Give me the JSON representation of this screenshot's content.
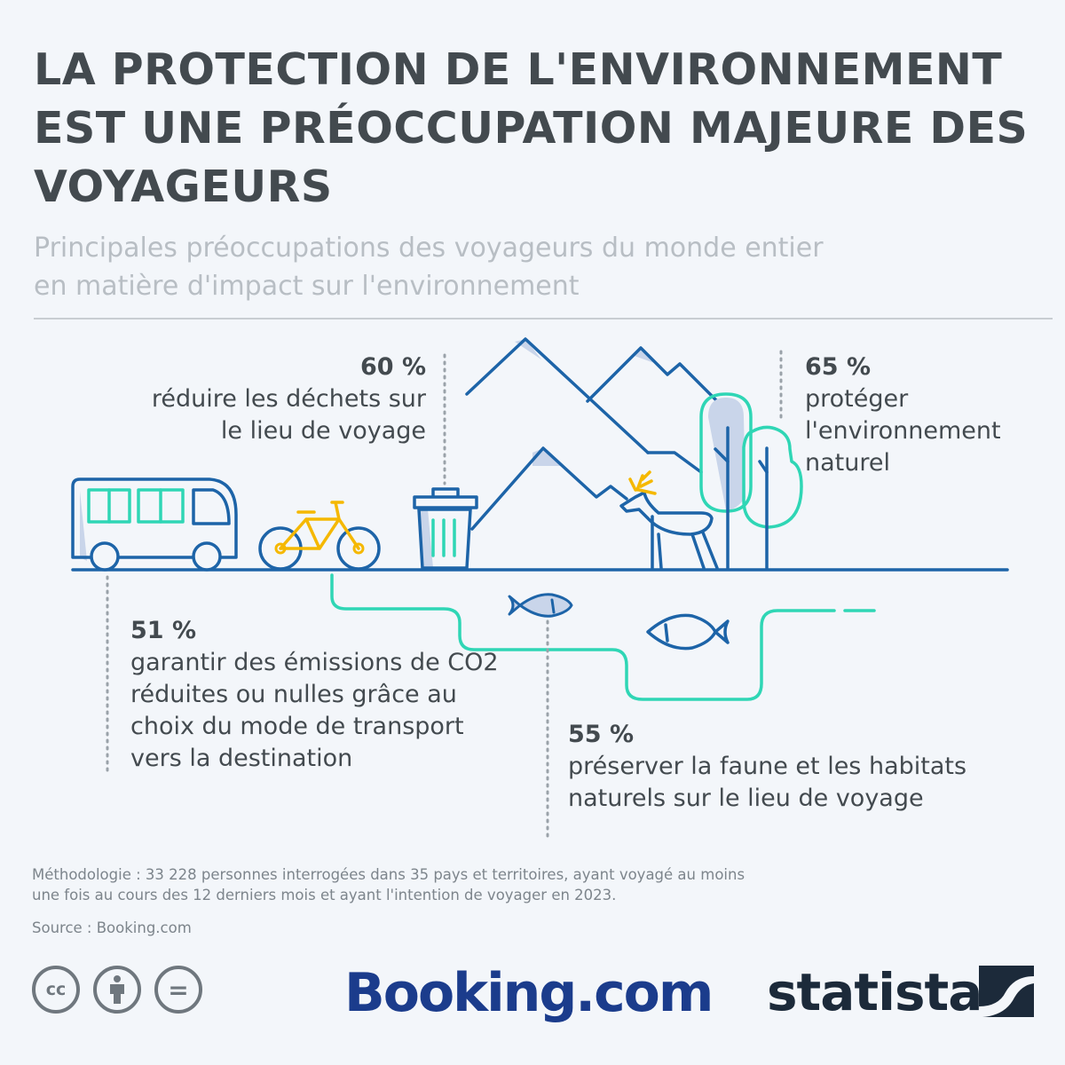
{
  "title": "LA PROTECTION DE L'ENVIRONNEMENT EST UNE PRÉOCCUPATION MAJEURE DES VOYAGEURS",
  "subtitle": "Principales préoccupations des voyageurs du monde entier en matière d'impact sur l'environnement",
  "stats": [
    {
      "pct": "60 %",
      "text": "réduire les déchets sur le lieu de voyage"
    },
    {
      "pct": "65 %",
      "text": "protéger l'environnement naturel"
    },
    {
      "pct": "51 %",
      "text": "garantir des émissions de CO2 réduites ou nulles grâce au choix du mode de transport vers la destination"
    },
    {
      "pct": "55 %",
      "text": "préserver la faune et les habitats naturels sur le lieu de voyage"
    }
  ],
  "methodology": "Méthodologie : 33 228 personnes interrogées dans 35 pays et territoires, ayant voyagé au moins une fois au cours des 12 derniers mois et ayant l'intention de voyager en 2023.",
  "source": "Source : Booking.com",
  "license_icons": [
    {
      "icon": "cc-icon",
      "label": "cc"
    },
    {
      "icon": "attribution-icon",
      "label": ""
    },
    {
      "icon": "no-derivatives-icon",
      "label": "="
    }
  ],
  "logos": {
    "booking": "Booking.com",
    "statista": "statista"
  },
  "colors": {
    "title": "#434a4f",
    "subtitle": "#b8bec4",
    "line_blue": "#1d64a8",
    "teal": "#2fd6b5",
    "yellow": "#f5b800",
    "shadow": "#c9d5ea",
    "booking": "#1b3c8c",
    "statista": "#1c2a3a"
  }
}
